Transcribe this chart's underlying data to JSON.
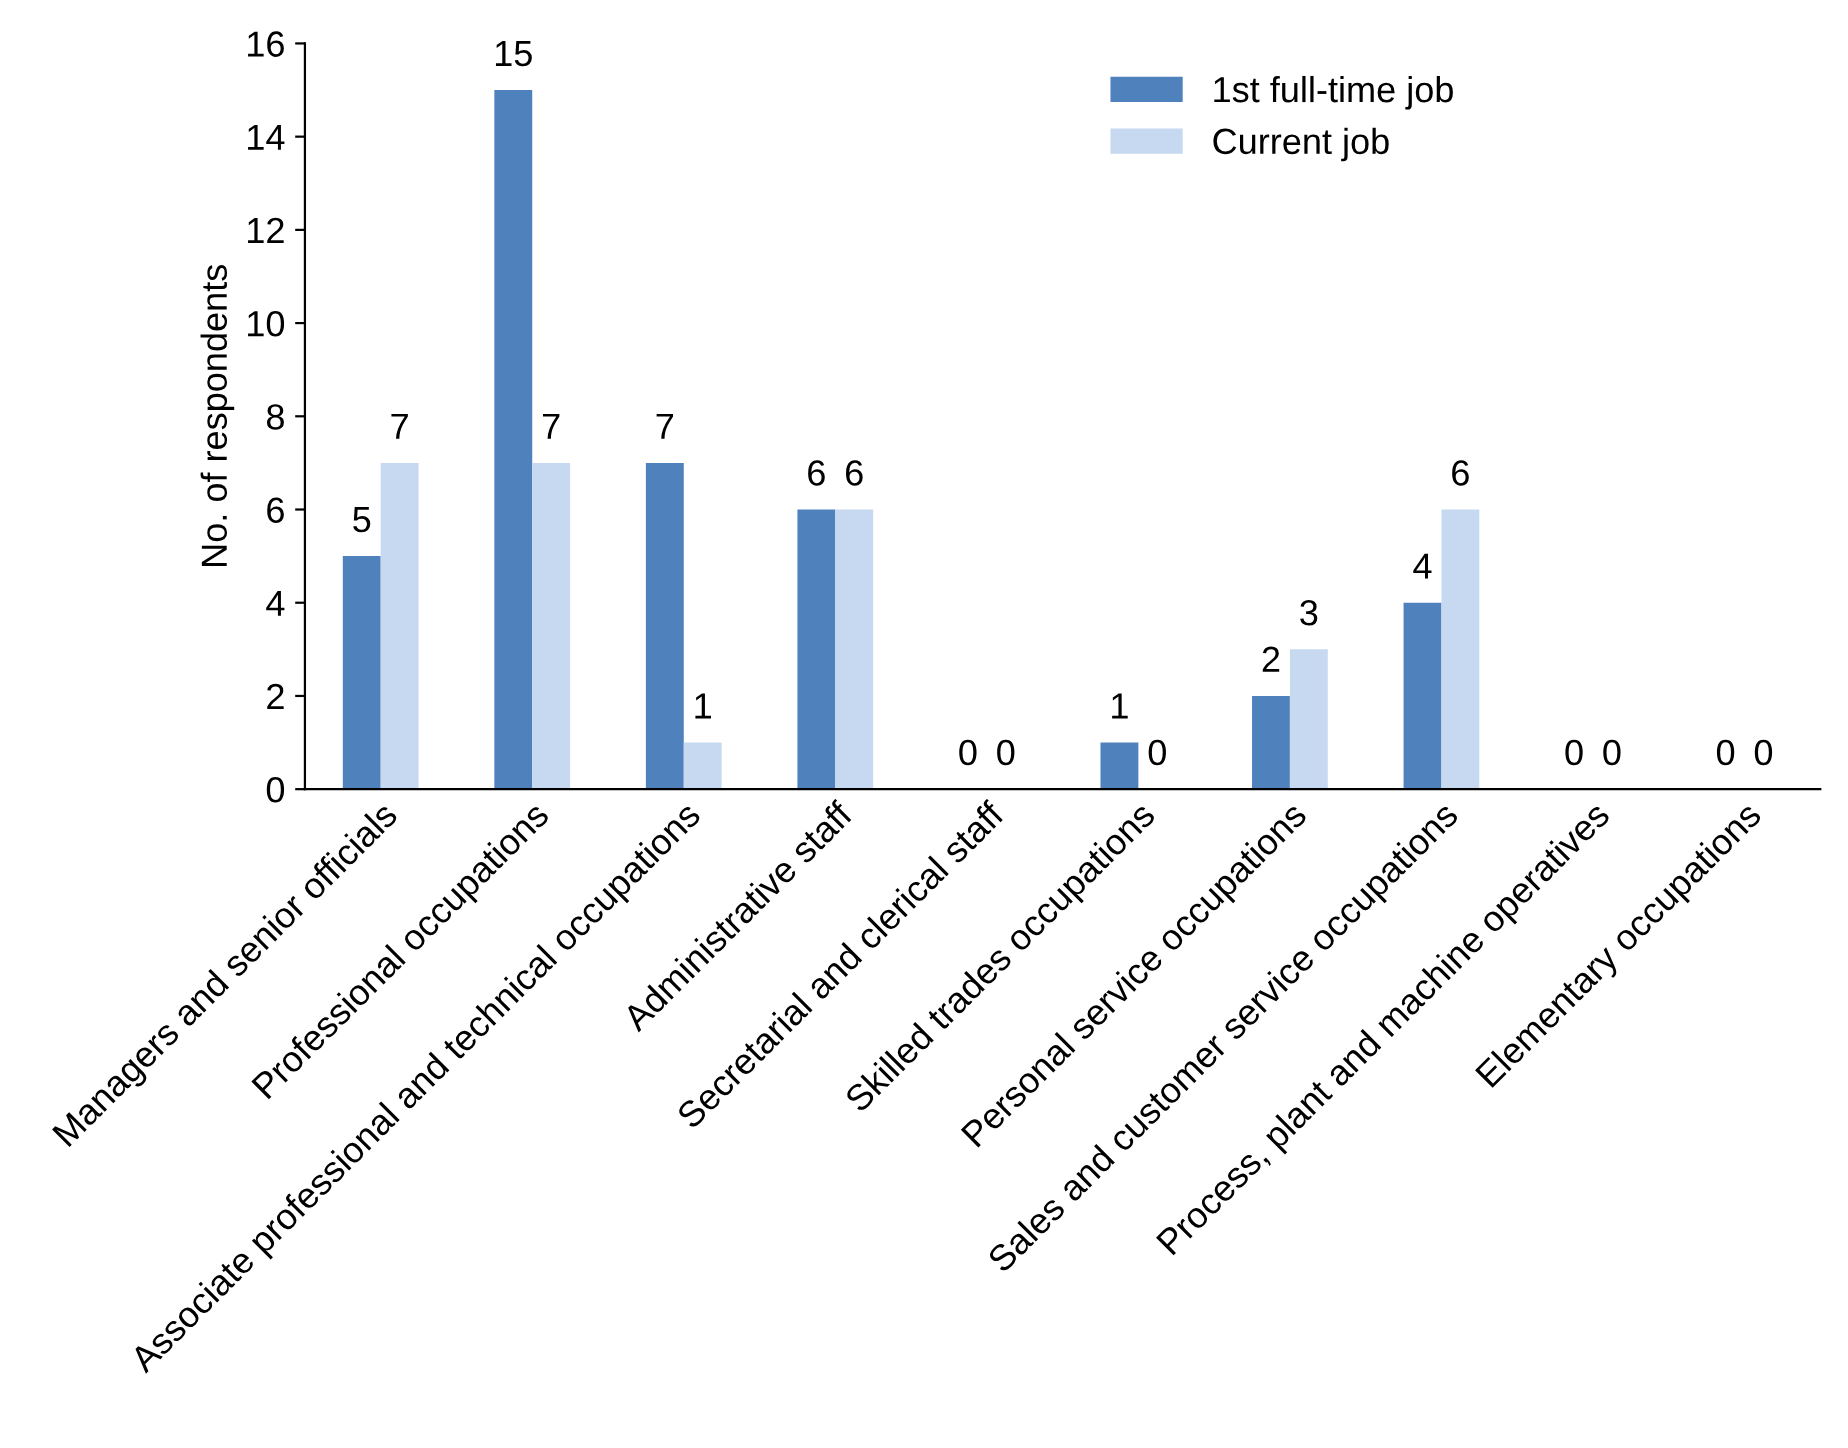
{
  "chart_data": {
    "type": "bar",
    "ylabel": "No. of respondents",
    "categories": [
      "Managers and senior officials",
      "Professional occupations",
      "Associate professional and technical occupations",
      "Administrative staff",
      "Secretarial and clerical staff",
      "Skilled trades occupations",
      "Personal service occupations",
      "Sales and customer service occupations",
      "Process, plant and machine operatives",
      "Elementary occupations"
    ],
    "series": [
      {
        "name": "1st full-time job",
        "color": "#4f81bd",
        "values": [
          5,
          15,
          7,
          6,
          0,
          1,
          2,
          4,
          0,
          0
        ]
      },
      {
        "name": "Current job",
        "color": "#c6d9f1",
        "values": [
          7,
          7,
          1,
          6,
          0,
          0,
          3,
          6,
          0,
          0
        ]
      }
    ],
    "ylim": [
      0,
      16
    ],
    "yticks": [
      0,
      2,
      4,
      6,
      8,
      10,
      12,
      14,
      16
    ],
    "data_labels": true,
    "grid": false,
    "legend": "top right"
  }
}
